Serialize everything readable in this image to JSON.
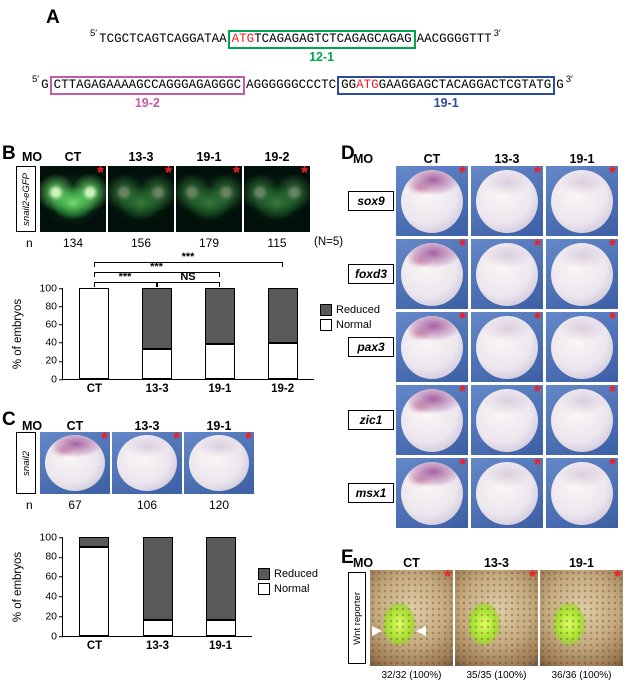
{
  "colors": {
    "box_green": "#00a550",
    "box_magenta": "#c45ba8",
    "box_blue": "#2b4b9b",
    "atg_red": "#ec1c24",
    "asterisk_red": "#f01e23",
    "reduced_gray": "#595959",
    "normal_white": "#ffffff",
    "insitu_blue": "#4a6cb3",
    "gfp_green": "#4ce04a",
    "wnt_green": "#b5e943"
  },
  "marks": {
    "asterisk": "*"
  },
  "panelA": {
    "letter": "A",
    "line1": {
      "prime5": "5′",
      "pre": "TCGCTCAGTCAGGATAA",
      "box_atg": "ATG",
      "box_rest": "TCAGAGAGTCTCAGAGCAGAG",
      "box_label": "12-1",
      "post": "AACGGGGTTT",
      "prime3": "3′"
    },
    "line2": {
      "prime5": "5′",
      "pre": "G",
      "box1_text": "CTTAGAGAAAAGCCAGGGAGAGGGC",
      "box1_label": "19-2",
      "mid": "AGGGGGGCCCTC",
      "box2_pre": "GG",
      "box2_atg": "ATG",
      "box2_rest": "GAAGGAGCTACAGGACTCGTATG",
      "box2_label": "19-1",
      "post": "G",
      "prime3": "3′"
    }
  },
  "panelB": {
    "letter": "B",
    "mo_label": "MO",
    "columns": [
      "CT",
      "13-3",
      "19-1",
      "19-2"
    ],
    "side_label": "snail2-eGFP",
    "images": [
      {
        "mo": "CT",
        "gfp": "strong"
      },
      {
        "mo": "13-3",
        "gfp": "reduced"
      },
      {
        "mo": "19-1",
        "gfp": "reduced"
      },
      {
        "mo": "19-2",
        "gfp": "reduced"
      }
    ],
    "n_label": "n",
    "n_values": [
      "134",
      "156",
      "179",
      "115"
    ],
    "n_note": "(N=5)"
  },
  "panelC": {
    "letter": "C",
    "mo_label": "MO",
    "columns": [
      "CT",
      "13-3",
      "19-1"
    ],
    "side_label": "snail2",
    "images": [
      {
        "mo": "CT",
        "stain": "strong"
      },
      {
        "mo": "13-3",
        "stain": "weak"
      },
      {
        "mo": "19-1",
        "stain": "weak"
      }
    ],
    "n_label": "n",
    "n_values": [
      "67",
      "106",
      "120"
    ]
  },
  "panelD": {
    "letter": "D",
    "mo_label": "MO",
    "columns": [
      "CT",
      "13-3",
      "19-1"
    ],
    "rows": [
      {
        "gene": "sox9",
        "cells": [
          {
            "mo": "CT",
            "stain": "strong"
          },
          {
            "mo": "13-3",
            "stain": "weak"
          },
          {
            "mo": "19-1",
            "stain": "weak"
          }
        ]
      },
      {
        "gene": "foxd3",
        "cells": [
          {
            "mo": "CT",
            "stain": "strong"
          },
          {
            "mo": "13-3",
            "stain": "weak"
          },
          {
            "mo": "19-1",
            "stain": "weak"
          }
        ]
      },
      {
        "gene": "pax3",
        "cells": [
          {
            "mo": "CT",
            "stain": "strong"
          },
          {
            "mo": "13-3",
            "stain": "weak"
          },
          {
            "mo": "19-1",
            "stain": "weak"
          }
        ]
      },
      {
        "gene": "zic1",
        "cells": [
          {
            "mo": "CT",
            "stain": "strong"
          },
          {
            "mo": "13-3",
            "stain": "weak"
          },
          {
            "mo": "19-1",
            "stain": "weak"
          }
        ]
      },
      {
        "gene": "msx1",
        "cells": [
          {
            "mo": "CT",
            "stain": "strong"
          },
          {
            "mo": "13-3",
            "stain": "weak"
          },
          {
            "mo": "19-1",
            "stain": "weak"
          }
        ]
      }
    ]
  },
  "panelE": {
    "letter": "E",
    "mo_label": "MO",
    "columns": [
      "CT",
      "13-3",
      "19-1"
    ],
    "side_label": "Wnt reporter",
    "images": [
      {
        "mo": "CT",
        "arrowheads": true
      },
      {
        "mo": "13-3",
        "arrowheads": false
      },
      {
        "mo": "19-1",
        "arrowheads": false
      }
    ],
    "counts": [
      "32/32 (100%)",
      "35/35 (100%)",
      "36/36 (100%)"
    ]
  },
  "chart_data": [
    {
      "id": "snail2-eGFP-quantification",
      "type": "bar",
      "stacked": true,
      "categories": [
        "CT",
        "13-3",
        "19-1",
        "19-2"
      ],
      "series": [
        {
          "name": "Normal",
          "color": "#ffffff",
          "values": [
            100,
            33,
            38,
            40
          ]
        },
        {
          "name": "Reduced",
          "color": "#595959",
          "values": [
            0,
            67,
            62,
            60
          ]
        }
      ],
      "ylabel": "% of embryos",
      "ylim": [
        0,
        100
      ],
      "yticks": [
        0,
        20,
        40,
        60,
        80,
        100
      ],
      "legend_position": "right",
      "legend": [
        "Reduced",
        "Normal"
      ],
      "annotations": [
        {
          "label": "***",
          "from": "CT",
          "to": "13-3"
        },
        {
          "label": "***",
          "from": "CT",
          "to": "19-1"
        },
        {
          "label": "***",
          "from": "CT",
          "to": "19-2"
        },
        {
          "label": "NS",
          "from": "13-3",
          "to": "19-1"
        }
      ]
    },
    {
      "id": "snail2-insitu-quantification",
      "type": "bar",
      "stacked": true,
      "categories": [
        "CT",
        "13-3",
        "19-1"
      ],
      "series": [
        {
          "name": "Normal",
          "color": "#ffffff",
          "values": [
            90,
            16,
            16
          ]
        },
        {
          "name": "Reduced",
          "color": "#595959",
          "values": [
            10,
            84,
            84
          ]
        }
      ],
      "ylabel": "% of embryos",
      "ylim": [
        0,
        100
      ],
      "yticks": [
        0,
        20,
        40,
        60,
        80,
        100
      ],
      "legend_position": "right",
      "legend": [
        "Reduced",
        "Normal"
      ]
    }
  ]
}
